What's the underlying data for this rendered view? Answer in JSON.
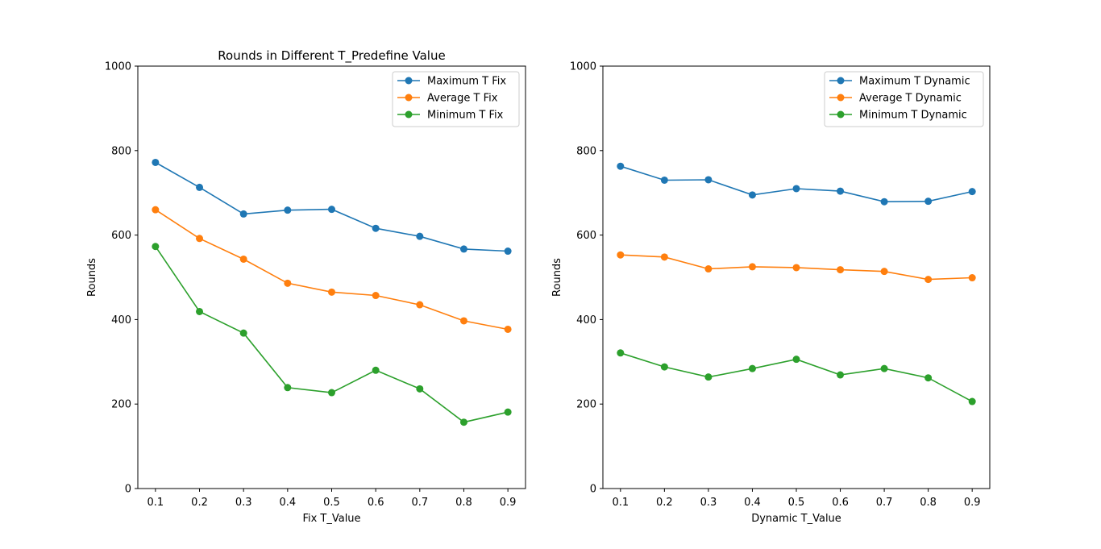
{
  "colors": {
    "series0": "#1f77b4",
    "series1": "#ff7f0e",
    "series2": "#2ca02c"
  },
  "chart_data": [
    {
      "type": "line",
      "title": "Rounds in Different T_Predefine Value",
      "xlabel": "Fix T_Value",
      "ylabel": "Rounds",
      "x": [
        0.1,
        0.2,
        0.3,
        0.4,
        0.5,
        0.6,
        0.7,
        0.8,
        0.9
      ],
      "xticks": [
        "0.1",
        "0.2",
        "0.3",
        "0.4",
        "0.5",
        "0.6",
        "0.7",
        "0.8",
        "0.9"
      ],
      "ylim": [
        0,
        1000
      ],
      "yticks": [
        "0",
        "200",
        "400",
        "600",
        "800",
        "1000"
      ],
      "legend_position": "top-right",
      "grid": false,
      "series": [
        {
          "name": "Maximum T Fix",
          "marker": "circle",
          "values": [
            772,
            713,
            650,
            659,
            661,
            616,
            597,
            567,
            562
          ]
        },
        {
          "name": "Average T Fix",
          "marker": "circle",
          "values": [
            660,
            592,
            543,
            486,
            465,
            457,
            435,
            397,
            377
          ]
        },
        {
          "name": "Minimum T Fix",
          "marker": "circle",
          "values": [
            573,
            419,
            368,
            239,
            227,
            280,
            236,
            157,
            181
          ]
        }
      ]
    },
    {
      "type": "line",
      "title": "",
      "xlabel": "Dynamic T_Value",
      "ylabel": "Rounds",
      "x": [
        0.1,
        0.2,
        0.3,
        0.4,
        0.5,
        0.6,
        0.7,
        0.8,
        0.9
      ],
      "xticks": [
        "0.1",
        "0.2",
        "0.3",
        "0.4",
        "0.5",
        "0.6",
        "0.7",
        "0.8",
        "0.9"
      ],
      "ylim": [
        0,
        1000
      ],
      "yticks": [
        "0",
        "200",
        "400",
        "600",
        "800",
        "1000"
      ],
      "legend_position": "top-right",
      "grid": false,
      "series": [
        {
          "name": "Maximum T Dynamic",
          "marker": "circle",
          "values": [
            763,
            730,
            731,
            695,
            710,
            704,
            679,
            680,
            703
          ]
        },
        {
          "name": "Average T Dynamic",
          "marker": "circle",
          "values": [
            553,
            548,
            520,
            525,
            523,
            518,
            514,
            495,
            499
          ]
        },
        {
          "name": "Minimum T Dynamic",
          "marker": "circle",
          "values": [
            321,
            288,
            264,
            284,
            306,
            269,
            284,
            262,
            206
          ]
        }
      ]
    }
  ]
}
